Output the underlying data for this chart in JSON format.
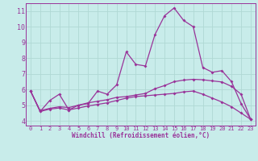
{
  "xlabel": "Windchill (Refroidissement éolien,°C)",
  "bg_color": "#c8ecea",
  "grid_color": "#b0d8d4",
  "line_color": "#993399",
  "xlim": [
    -0.5,
    23.5
  ],
  "ylim": [
    3.7,
    11.5
  ],
  "yticks": [
    4,
    5,
    6,
    7,
    8,
    9,
    10,
    11
  ],
  "xticks": [
    0,
    1,
    2,
    3,
    4,
    5,
    6,
    7,
    8,
    9,
    10,
    11,
    12,
    13,
    14,
    15,
    16,
    17,
    18,
    19,
    20,
    21,
    22,
    23
  ],
  "line1_x": [
    0,
    1,
    2,
    3,
    4,
    5,
    6,
    7,
    8,
    9,
    10,
    11,
    12,
    13,
    14,
    15,
    16,
    17,
    18,
    19,
    20,
    21,
    22,
    23
  ],
  "line1_y": [
    5.9,
    4.6,
    5.3,
    5.7,
    4.7,
    5.0,
    5.1,
    5.9,
    5.7,
    6.3,
    8.4,
    7.6,
    7.5,
    9.5,
    10.7,
    11.2,
    10.4,
    10.0,
    7.4,
    7.1,
    7.2,
    6.5,
    5.1,
    4.1
  ],
  "line2_x": [
    0,
    1,
    2,
    3,
    4,
    5,
    6,
    7,
    8,
    9,
    10,
    11,
    12,
    13,
    14,
    15,
    16,
    17,
    18,
    19,
    20,
    21,
    22,
    23
  ],
  "line2_y": [
    5.9,
    4.65,
    4.8,
    4.9,
    4.85,
    5.0,
    5.15,
    5.25,
    5.35,
    5.5,
    5.55,
    5.65,
    5.75,
    6.05,
    6.25,
    6.5,
    6.6,
    6.65,
    6.62,
    6.55,
    6.48,
    6.2,
    5.7,
    4.1
  ],
  "line3_x": [
    0,
    1,
    2,
    3,
    4,
    5,
    6,
    7,
    8,
    9,
    10,
    11,
    12,
    13,
    14,
    15,
    16,
    17,
    18,
    19,
    20,
    21,
    22,
    23
  ],
  "line3_y": [
    5.9,
    4.6,
    4.75,
    4.82,
    4.7,
    4.82,
    4.95,
    5.05,
    5.15,
    5.3,
    5.45,
    5.55,
    5.6,
    5.65,
    5.7,
    5.75,
    5.85,
    5.9,
    5.7,
    5.45,
    5.2,
    4.9,
    4.5,
    4.1
  ]
}
